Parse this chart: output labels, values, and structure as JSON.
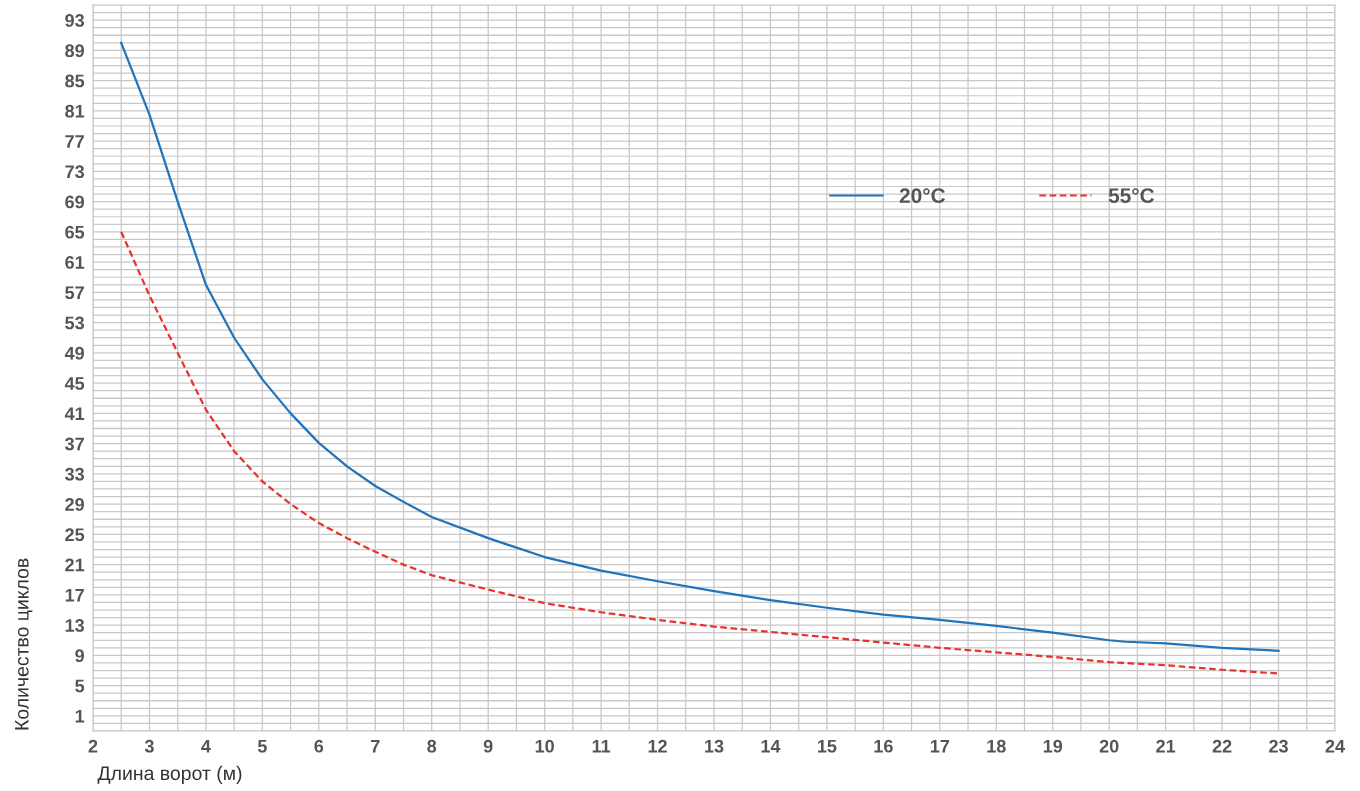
{
  "chart_data": {
    "type": "line",
    "xlabel": "Длина ворот (м)",
    "ylabel": "Количество циклов",
    "xlim": [
      2,
      24
    ],
    "xticks": [
      2,
      3,
      4,
      5,
      6,
      7,
      8,
      9,
      10,
      11,
      12,
      13,
      14,
      15,
      16,
      17,
      18,
      19,
      20,
      21,
      22,
      23,
      24
    ],
    "ylim": [
      -1,
      95
    ],
    "yticks": [
      1,
      5,
      9,
      13,
      17,
      21,
      25,
      29,
      33,
      37,
      41,
      45,
      49,
      53,
      57,
      61,
      65,
      69,
      73,
      77,
      81,
      85,
      89,
      93
    ],
    "grid": true,
    "legend": "top right",
    "series": [
      {
        "name": "20°C",
        "color": "#1f74bc",
        "line_style": "solid",
        "x": [
          2.5,
          3,
          3.5,
          4,
          4.5,
          5,
          5.5,
          6,
          6.5,
          7,
          7.5,
          8,
          9,
          10,
          11,
          12,
          13,
          14,
          15,
          16,
          17,
          18,
          19,
          20,
          20.3,
          21,
          22,
          23
        ],
        "values": [
          90,
          80.5,
          69,
          58,
          51,
          45.5,
          41,
          37.1,
          34,
          31.4,
          29.3,
          27.3,
          24.5,
          22,
          20.2,
          18.8,
          17.5,
          16.3,
          15.3,
          14.4,
          13.7,
          12.9,
          12,
          11,
          10.8,
          10.6,
          10,
          9.6
        ]
      },
      {
        "name": "55°C",
        "color": "#e8322d",
        "line_style": "dashed",
        "x": [
          2.5,
          3,
          3.5,
          4,
          4.5,
          5,
          5.5,
          6,
          6.5,
          7,
          7.5,
          8,
          9,
          10,
          11,
          12,
          13,
          14,
          15,
          16,
          17,
          18,
          19,
          20,
          21,
          22,
          23
        ],
        "values": [
          65,
          56.6,
          49,
          41.5,
          36,
          32,
          29,
          26.5,
          24.5,
          22.7,
          21,
          19.6,
          17.7,
          15.9,
          14.7,
          13.7,
          12.8,
          12.1,
          11.4,
          10.7,
          10,
          9.4,
          8.8,
          8.1,
          7.7,
          7.1,
          6.6
        ]
      }
    ]
  }
}
